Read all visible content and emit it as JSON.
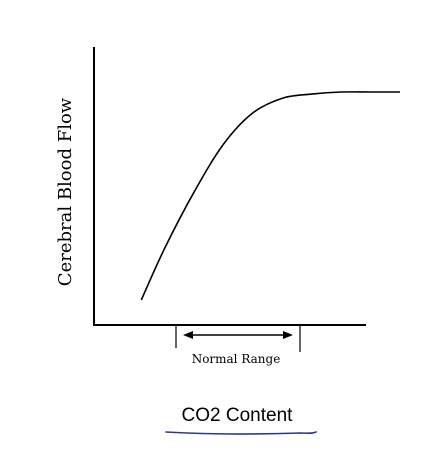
{
  "chart_data": {
    "type": "line",
    "title": "",
    "xlabel": "CO2 Content",
    "ylabel": "Cerebral Blood Flow",
    "annotation": "Normal Range",
    "x_ticks_labels": [],
    "y_ticks_labels": [],
    "series": [
      {
        "x": [
          0.12,
          0.2,
          0.3,
          0.4,
          0.5,
          0.6,
          0.7,
          0.8,
          0.9,
          1.0
        ],
        "y": [
          0.0,
          0.25,
          0.52,
          0.75,
          0.9,
          0.97,
          0.99,
          1.0,
          1.0,
          1.0
        ]
      }
    ],
    "grid": false,
    "legend": "none",
    "colors": {
      "axis": "#000000",
      "curve": "#000000",
      "underline": "#2b3a8f"
    }
  }
}
